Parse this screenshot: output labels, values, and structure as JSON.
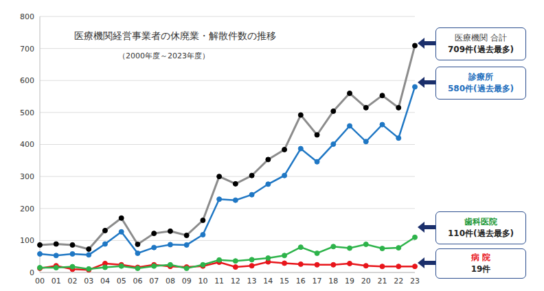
{
  "chart_data": {
    "type": "line",
    "title": "医療機関経営事業者の休廃業・解散件数の推移",
    "subtitle": "（2000年度～2023年度）",
    "categories": [
      "00",
      "01",
      "02",
      "03",
      "04",
      "05",
      "06",
      "07",
      "08",
      "09",
      "10",
      "11",
      "12",
      "13",
      "14",
      "15",
      "16",
      "17",
      "18",
      "19",
      "20",
      "21",
      "22",
      "23"
    ],
    "series": [
      {
        "name": "医療機関 合計",
        "color": "#8c8c8c",
        "annotation": "709件(過去最多)",
        "values": [
          86,
          89,
          86,
          73,
          131,
          170,
          88,
          122,
          129,
          116,
          163,
          300,
          277,
          303,
          353,
          384,
          492,
          430,
          504,
          560,
          515,
          553,
          515,
          709
        ]
      },
      {
        "name": "診療所",
        "color": "#1f77c4",
        "annotation": "580件(過去最多)",
        "values": [
          58,
          53,
          58,
          55,
          89,
          127,
          60,
          78,
          87,
          86,
          118,
          229,
          226,
          243,
          276,
          303,
          387,
          346,
          401,
          458,
          409,
          462,
          420,
          580
        ]
      },
      {
        "name": "歯科医院",
        "color": "#2db34a",
        "annotation": "110件(過去最多)",
        "values": [
          15,
          15,
          18,
          11,
          16,
          20,
          13,
          20,
          24,
          13,
          24,
          39,
          36,
          40,
          45,
          53,
          79,
          60,
          81,
          76,
          88,
          75,
          77,
          110
        ]
      },
      {
        "name": "病 院",
        "color": "#e8151b",
        "annotation": "19件",
        "values": [
          13,
          21,
          10,
          8,
          28,
          24,
          16,
          24,
          19,
          17,
          20,
          32,
          17,
          21,
          33,
          29,
          26,
          24,
          24,
          28,
          21,
          19,
          19,
          19
        ]
      }
    ],
    "ylim": [
      0,
      800
    ],
    "yticks": [
      0,
      100,
      200,
      300,
      400,
      500,
      600,
      700,
      800
    ],
    "grid": true
  }
}
